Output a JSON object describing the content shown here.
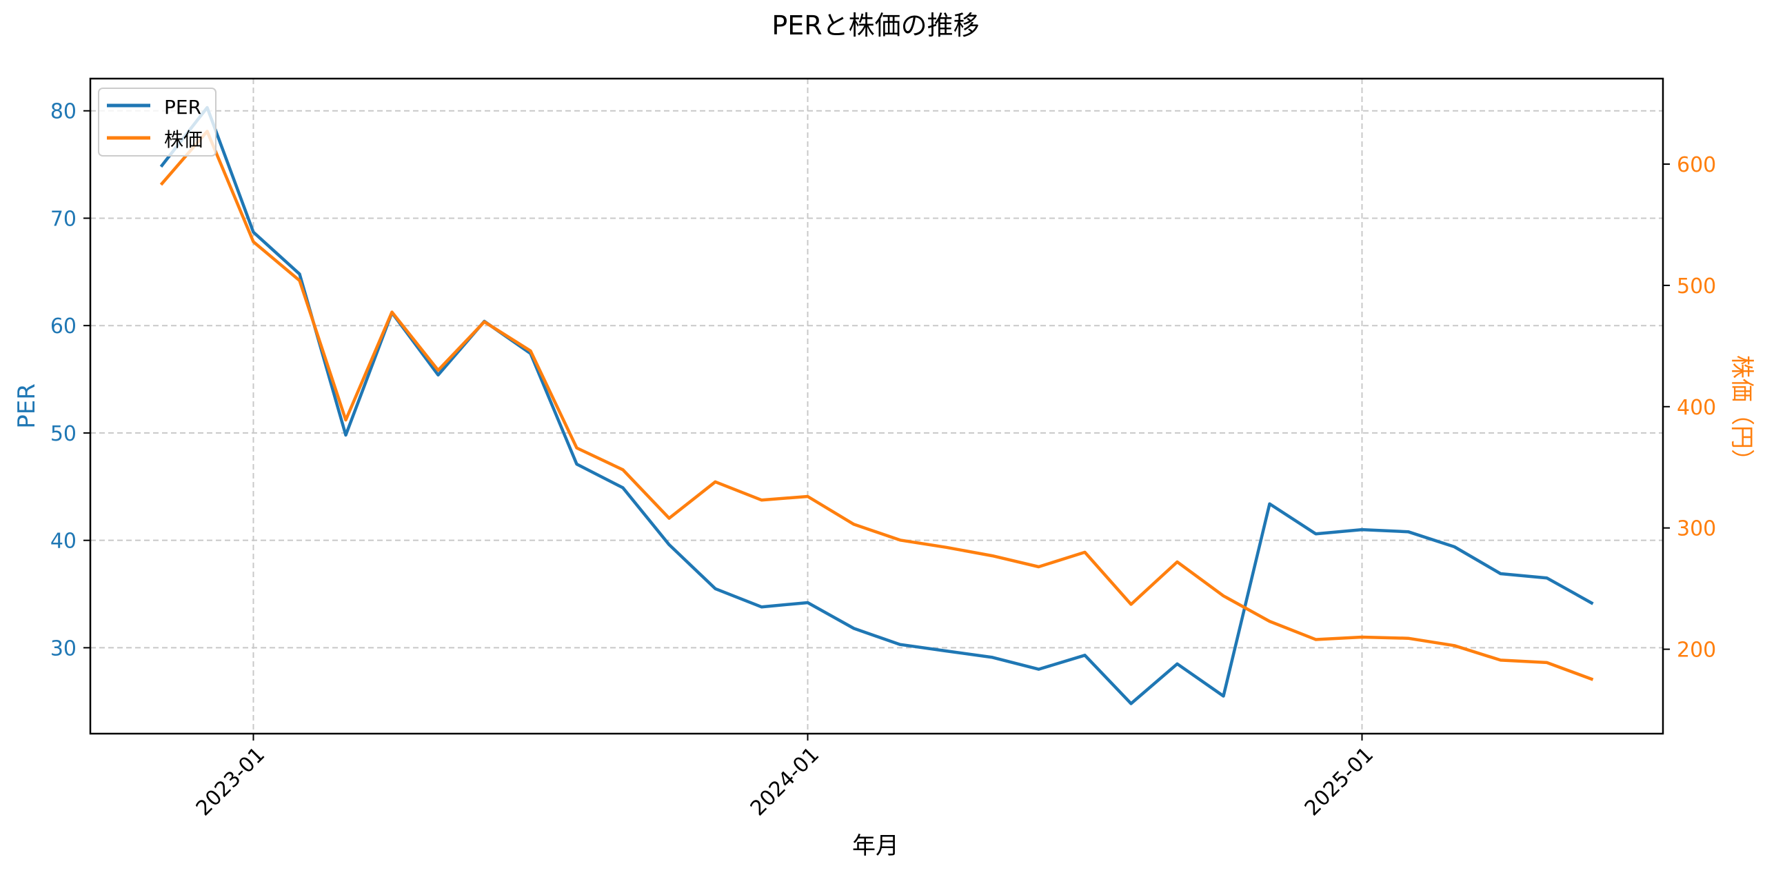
{
  "title": "PERと株価の推移",
  "colors": {
    "per": "#1f77b4",
    "price": "#ff7f0e",
    "grid": "#c8c8c8",
    "axis": "#000000"
  },
  "legend": {
    "items": [
      {
        "label": "PER",
        "color": "#1f77b4"
      },
      {
        "label": "株価",
        "color": "#ff7f0e"
      }
    ],
    "position": "upper left"
  },
  "chart_data": {
    "type": "line",
    "title": "PERと株価の推移",
    "xlabel": "年月",
    "ylabel": "PER",
    "ylabel_right": "株価（円）",
    "x": [
      "2022-11",
      "2022-12",
      "2023-01",
      "2023-02",
      "2023-03",
      "2023-04",
      "2023-05",
      "2023-06",
      "2023-07",
      "2023-08",
      "2023-09",
      "2023-10",
      "2023-11",
      "2023-12",
      "2024-01",
      "2024-02",
      "2024-03",
      "2024-04",
      "2024-05",
      "2024-06",
      "2024-07",
      "2024-08",
      "2024-09",
      "2024-10",
      "2024-11",
      "2024-12",
      "2025-01",
      "2025-02",
      "2025-03",
      "2025-04",
      "2025-05",
      "2025-06"
    ],
    "x_ticks": [
      "2023-01",
      "2024-01",
      "2025-01"
    ],
    "series": [
      {
        "name": "PER",
        "axis": "left",
        "color": "#1f77b4",
        "values": [
          74.8,
          80.3,
          68.7,
          64.8,
          49.8,
          61.2,
          55.4,
          60.4,
          57.4,
          47.1,
          44.9,
          39.6,
          35.5,
          33.8,
          34.2,
          31.8,
          30.3,
          29.7,
          29.1,
          28.0,
          29.3,
          24.8,
          28.5,
          25.5,
          43.4,
          40.6,
          41.0,
          40.8,
          39.4,
          36.9,
          36.5,
          34.1
        ]
      },
      {
        "name": "株価",
        "axis": "right",
        "color": "#ff7f0e",
        "values": [
          583,
          627,
          536,
          504,
          389,
          478,
          430,
          470,
          446,
          366,
          348,
          308,
          338,
          323,
          326,
          303,
          290,
          284,
          277,
          268,
          280,
          237,
          272,
          244,
          223,
          208,
          210,
          209,
          203,
          191,
          189,
          175
        ]
      }
    ],
    "ylim": [
      22.0,
      83.0
    ],
    "ylim_right": [
      130.4,
      670.5
    ],
    "y_ticks": [
      30,
      40,
      50,
      60,
      70,
      80
    ],
    "y_ticks_right": [
      200,
      300,
      400,
      500,
      600
    ],
    "grid": true,
    "legend_position": "upper left"
  }
}
